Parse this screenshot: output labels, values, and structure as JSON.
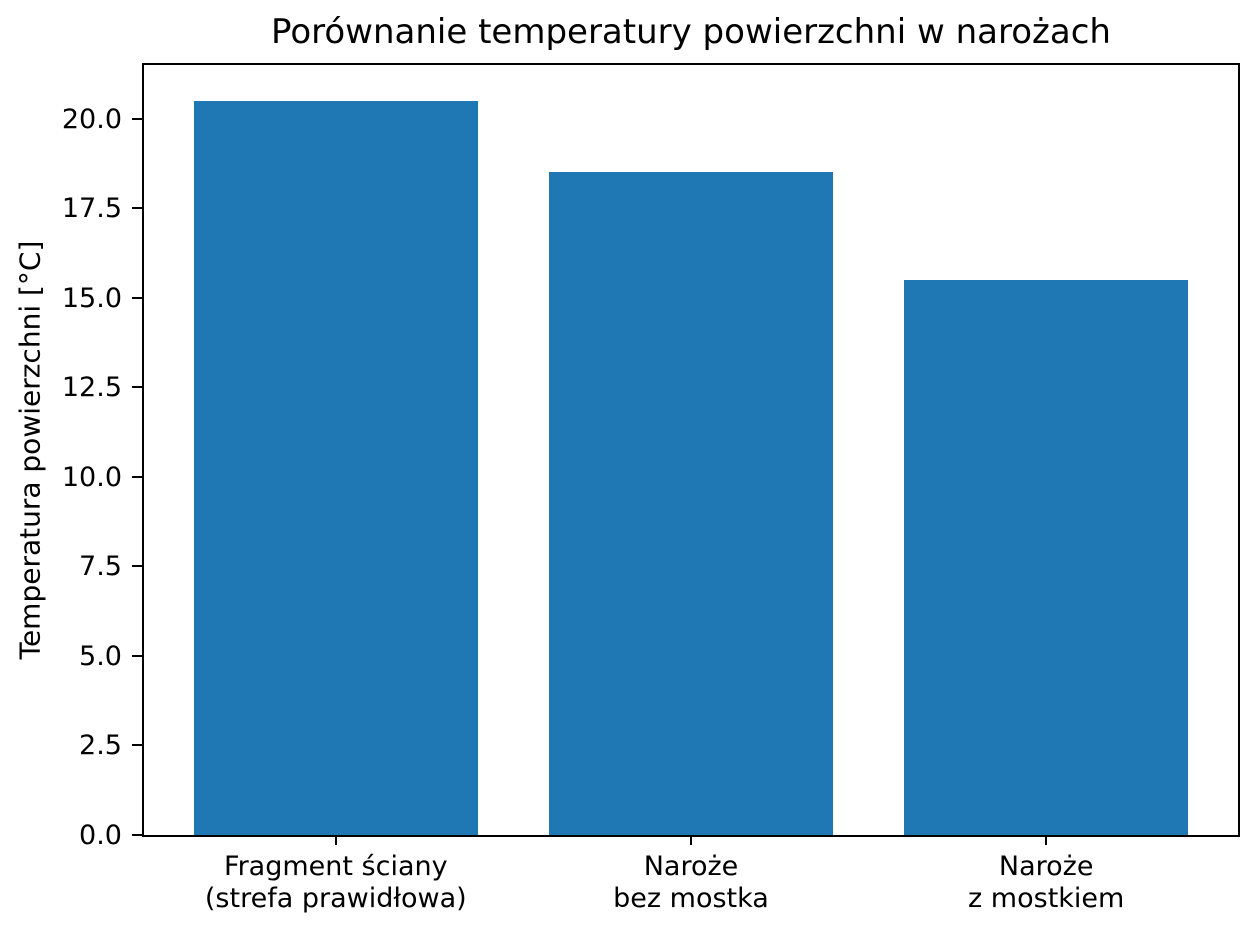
{
  "chart_data": {
    "type": "bar",
    "title": "Porównanie temperatury powierzchni w narożach",
    "xlabel": "",
    "ylabel": "Temperatura powierzchni [°C]",
    "categories": [
      "Fragment ściany\n(strefa prawidłowa)",
      "Naroże\nbez mostka",
      "Naroże\nz mostkiem"
    ],
    "values": [
      20.5,
      18.5,
      15.5
    ],
    "ytick_labels": [
      "0.0",
      "2.5",
      "5.0",
      "7.5",
      "10.0",
      "12.5",
      "15.0",
      "17.5",
      "20.0"
    ],
    "ylim": [
      0,
      21.5
    ],
    "xlim": [
      -0.54,
      2.54
    ],
    "bar_width": 0.8,
    "bar_color": "#1f77b4",
    "grid": false,
    "legend": null
  }
}
